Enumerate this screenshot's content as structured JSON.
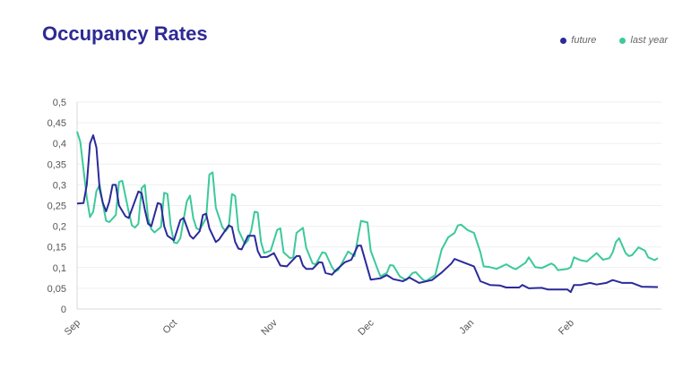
{
  "chart_data": {
    "type": "line",
    "title": "Occupancy Rates",
    "xlabel": "",
    "ylabel": "",
    "ylim": [
      0,
      0.5
    ],
    "yticks": [
      "0",
      "0,05",
      "0,1",
      "0,15",
      "0,2",
      "0,25",
      "0,3",
      "0,35",
      "0,4",
      "0,45",
      "0,5"
    ],
    "xticks": [
      {
        "label": "Sep",
        "date": "09-01"
      },
      {
        "label": "Oct",
        "date": "10-01"
      },
      {
        "label": "Nov",
        "date": "11-01"
      },
      {
        "label": "Dec",
        "date": "12-01"
      },
      {
        "label": "Jan",
        "date": "01-01"
      },
      {
        "label": "Feb",
        "date": "02-01"
      }
    ],
    "grid": true,
    "legend_position": "top-right",
    "series": [
      {
        "name": "future",
        "color": "#2b2a9a",
        "points": [
          [
            "09-01",
            0.255
          ],
          [
            "09-03",
            0.256
          ],
          [
            "09-04",
            0.3
          ],
          [
            "09-05",
            0.4
          ],
          [
            "09-06",
            0.42
          ],
          [
            "09-07",
            0.39
          ],
          [
            "09-08",
            0.29
          ],
          [
            "09-09",
            0.256
          ],
          [
            "09-10",
            0.236
          ],
          [
            "09-11",
            0.26
          ],
          [
            "09-12",
            0.3
          ],
          [
            "09-13",
            0.3
          ],
          [
            "09-14",
            0.25
          ],
          [
            "09-16",
            0.224
          ],
          [
            "09-17",
            0.22
          ],
          [
            "09-20",
            0.284
          ],
          [
            "09-21",
            0.28
          ],
          [
            "09-22",
            0.24
          ],
          [
            "09-23",
            0.206
          ],
          [
            "09-24",
            0.2
          ],
          [
            "09-26",
            0.256
          ],
          [
            "09-27",
            0.253
          ],
          [
            "09-28",
            0.2
          ],
          [
            "09-29",
            0.177
          ],
          [
            "10-01",
            0.166
          ],
          [
            "10-03",
            0.215
          ],
          [
            "10-04",
            0.22
          ],
          [
            "10-06",
            0.177
          ],
          [
            "10-07",
            0.17
          ],
          [
            "10-09",
            0.188
          ],
          [
            "10-10",
            0.227
          ],
          [
            "10-11",
            0.23
          ],
          [
            "10-12",
            0.195
          ],
          [
            "10-14",
            0.162
          ],
          [
            "10-15",
            0.168
          ],
          [
            "10-18",
            0.202
          ],
          [
            "10-19",
            0.198
          ],
          [
            "10-20",
            0.162
          ],
          [
            "10-21",
            0.146
          ],
          [
            "10-22",
            0.144
          ],
          [
            "10-24",
            0.177
          ],
          [
            "10-26",
            0.177
          ],
          [
            "10-27",
            0.14
          ],
          [
            "10-28",
            0.125
          ],
          [
            "10-30",
            0.126
          ],
          [
            "11-01",
            0.135
          ],
          [
            "11-03",
            0.105
          ],
          [
            "11-05",
            0.103
          ],
          [
            "11-08",
            0.128
          ],
          [
            "11-09",
            0.128
          ],
          [
            "11-10",
            0.105
          ],
          [
            "11-11",
            0.097
          ],
          [
            "11-13",
            0.097
          ],
          [
            "11-15",
            0.113
          ],
          [
            "11-16",
            0.112
          ],
          [
            "11-17",
            0.087
          ],
          [
            "11-19",
            0.083
          ],
          [
            "11-20",
            0.092
          ],
          [
            "11-23",
            0.113
          ],
          [
            "11-25",
            0.119
          ],
          [
            "11-27",
            0.153
          ],
          [
            "11-28",
            0.153
          ],
          [
            "12-01",
            0.071
          ],
          [
            "12-04",
            0.074
          ],
          [
            "12-06",
            0.082
          ],
          [
            "12-08",
            0.072
          ],
          [
            "12-11",
            0.067
          ],
          [
            "12-13",
            0.076
          ],
          [
            "12-16",
            0.063
          ],
          [
            "12-20",
            0.07
          ],
          [
            "12-23",
            0.088
          ],
          [
            "12-26",
            0.11
          ],
          [
            "12-27",
            0.121
          ],
          [
            "12-30",
            0.112
          ],
          [
            "01-02",
            0.103
          ],
          [
            "01-04",
            0.067
          ],
          [
            "01-07",
            0.058
          ],
          [
            "01-10",
            0.057
          ],
          [
            "01-12",
            0.052
          ],
          [
            "01-16",
            0.052
          ],
          [
            "01-17",
            0.058
          ],
          [
            "01-19",
            0.05
          ],
          [
            "01-23",
            0.051
          ],
          [
            "01-25",
            0.047
          ],
          [
            "01-31",
            0.047
          ],
          [
            "02-01",
            0.041
          ],
          [
            "02-02",
            0.058
          ],
          [
            "02-04",
            0.058
          ],
          [
            "02-07",
            0.063
          ],
          [
            "02-09",
            0.059
          ],
          [
            "02-12",
            0.063
          ],
          [
            "02-14",
            0.07
          ],
          [
            "02-17",
            0.063
          ],
          [
            "02-20",
            0.063
          ],
          [
            "02-23",
            0.054
          ],
          [
            "02-28",
            0.053
          ]
        ]
      },
      {
        "name": "last year",
        "color": "#3cc99b",
        "points": [
          [
            "09-01",
            0.429
          ],
          [
            "09-02",
            0.404
          ],
          [
            "09-04",
            0.27
          ],
          [
            "09-05",
            0.222
          ],
          [
            "09-06",
            0.235
          ],
          [
            "09-07",
            0.285
          ],
          [
            "09-08",
            0.3
          ],
          [
            "09-09",
            0.253
          ],
          [
            "09-10",
            0.213
          ],
          [
            "09-11",
            0.21
          ],
          [
            "09-13",
            0.227
          ],
          [
            "09-14",
            0.307
          ],
          [
            "09-15",
            0.31
          ],
          [
            "09-17",
            0.235
          ],
          [
            "09-18",
            0.202
          ],
          [
            "09-19",
            0.197
          ],
          [
            "09-20",
            0.206
          ],
          [
            "09-21",
            0.292
          ],
          [
            "09-22",
            0.3
          ],
          [
            "09-23",
            0.22
          ],
          [
            "09-24",
            0.193
          ],
          [
            "09-25",
            0.185
          ],
          [
            "09-27",
            0.198
          ],
          [
            "09-28",
            0.281
          ],
          [
            "09-29",
            0.278
          ],
          [
            "09-30",
            0.202
          ],
          [
            "10-01",
            0.161
          ],
          [
            "10-02",
            0.159
          ],
          [
            "10-03",
            0.171
          ],
          [
            "10-05",
            0.26
          ],
          [
            "10-06",
            0.274
          ],
          [
            "10-07",
            0.22
          ],
          [
            "10-08",
            0.195
          ],
          [
            "10-09",
            0.191
          ],
          [
            "10-11",
            0.22
          ],
          [
            "10-12",
            0.325
          ],
          [
            "10-13",
            0.33
          ],
          [
            "10-14",
            0.245
          ],
          [
            "10-16",
            0.198
          ],
          [
            "10-17",
            0.188
          ],
          [
            "10-18",
            0.198
          ],
          [
            "10-19",
            0.278
          ],
          [
            "10-20",
            0.273
          ],
          [
            "10-21",
            0.191
          ],
          [
            "10-23",
            0.157
          ],
          [
            "10-24",
            0.166
          ],
          [
            "10-25",
            0.19
          ],
          [
            "10-26",
            0.235
          ],
          [
            "10-27",
            0.233
          ],
          [
            "10-28",
            0.162
          ],
          [
            "10-29",
            0.135
          ],
          [
            "10-31",
            0.141
          ],
          [
            "11-02",
            0.191
          ],
          [
            "11-03",
            0.195
          ],
          [
            "11-04",
            0.137
          ],
          [
            "11-06",
            0.123
          ],
          [
            "11-07",
            0.125
          ],
          [
            "11-08",
            0.184
          ],
          [
            "11-10",
            0.196
          ],
          [
            "11-11",
            0.148
          ],
          [
            "11-13",
            0.11
          ],
          [
            "11-14",
            0.108
          ],
          [
            "11-16",
            0.137
          ],
          [
            "11-17",
            0.135
          ],
          [
            "11-19",
            0.101
          ],
          [
            "11-20",
            0.09
          ],
          [
            "11-21",
            0.095
          ],
          [
            "11-24",
            0.139
          ],
          [
            "11-26",
            0.128
          ],
          [
            "11-28",
            0.213
          ],
          [
            "11-30",
            0.209
          ],
          [
            "12-01",
            0.141
          ],
          [
            "12-03",
            0.099
          ],
          [
            "12-04",
            0.079
          ],
          [
            "12-06",
            0.087
          ],
          [
            "12-07",
            0.106
          ],
          [
            "12-08",
            0.105
          ],
          [
            "12-10",
            0.079
          ],
          [
            "12-12",
            0.07
          ],
          [
            "12-14",
            0.087
          ],
          [
            "12-15",
            0.089
          ],
          [
            "12-17",
            0.072
          ],
          [
            "12-18",
            0.067
          ],
          [
            "12-21",
            0.082
          ],
          [
            "12-23",
            0.144
          ],
          [
            "12-25",
            0.173
          ],
          [
            "12-27",
            0.184
          ],
          [
            "12-28",
            0.202
          ],
          [
            "12-29",
            0.204
          ],
          [
            "12-31",
            0.191
          ],
          [
            "01-02",
            0.184
          ],
          [
            "01-04",
            0.137
          ],
          [
            "01-05",
            0.103
          ],
          [
            "01-07",
            0.101
          ],
          [
            "01-09",
            0.097
          ],
          [
            "01-12",
            0.108
          ],
          [
            "01-14",
            0.099
          ],
          [
            "01-15",
            0.096
          ],
          [
            "01-18",
            0.112
          ],
          [
            "01-19",
            0.125
          ],
          [
            "01-21",
            0.101
          ],
          [
            "01-23",
            0.099
          ],
          [
            "01-26",
            0.11
          ],
          [
            "01-27",
            0.105
          ],
          [
            "01-28",
            0.094
          ],
          [
            "01-31",
            0.097
          ],
          [
            "02-01",
            0.101
          ],
          [
            "02-02",
            0.125
          ],
          [
            "02-04",
            0.118
          ],
          [
            "02-06",
            0.115
          ],
          [
            "02-09",
            0.135
          ],
          [
            "02-11",
            0.119
          ],
          [
            "02-13",
            0.123
          ],
          [
            "02-14",
            0.137
          ],
          [
            "02-15",
            0.162
          ],
          [
            "02-16",
            0.171
          ],
          [
            "02-18",
            0.135
          ],
          [
            "02-19",
            0.128
          ],
          [
            "02-20",
            0.13
          ],
          [
            "02-22",
            0.149
          ],
          [
            "02-24",
            0.141
          ],
          [
            "02-25",
            0.125
          ],
          [
            "02-27",
            0.118
          ],
          [
            "02-28",
            0.123
          ]
        ]
      }
    ]
  }
}
